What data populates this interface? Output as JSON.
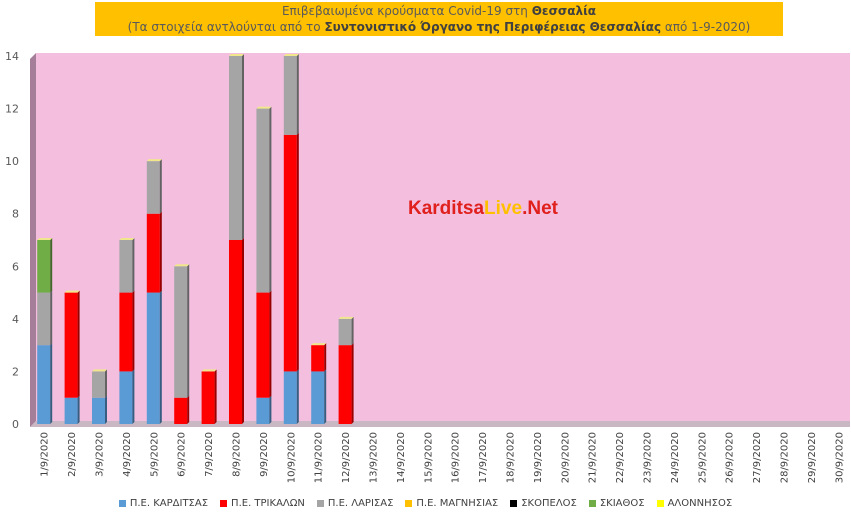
{
  "title": {
    "line1_prefix": "Επιβεβαιωμένα κρούσματα Covid-19 στη ",
    "line1_bold": "Θεσσαλία",
    "line2_prefix": "(Τα στοιχεία αντλούνται από το ",
    "line2_bold": "Συντονιστικό Όργανο της Περιφέρειας Θεσσαλίας",
    "line2_suffix": " από 1-9-2020)"
  },
  "watermark": {
    "part1": "Karditsa",
    "part2": "Live",
    "part3": ".Net"
  },
  "colors": {
    "background": "#f4bedf",
    "title_bg": "#ffc000",
    "watermark_red": "#e0201c",
    "watermark_yellow": "#ffc000"
  },
  "chart_data": {
    "type": "bar",
    "stacked": true,
    "categories": [
      "1/9/2020",
      "2/9/2020",
      "3/9/2020",
      "4/9/2020",
      "5/9/2020",
      "6/9/2020",
      "7/9/2020",
      "8/9/2020",
      "9/9/2020",
      "10/9/2020",
      "11/9/2020",
      "12/9/2020",
      "13/9/2020",
      "14/9/2020",
      "15/9/2020",
      "16/9/2020",
      "17/9/2020",
      "18/9/2020",
      "19/9/2020",
      "20/9/2020",
      "21/9/2020",
      "22/9/2020",
      "23/9/2020",
      "24/9/2020",
      "25/9/2020",
      "26/9/2020",
      "27/9/2020",
      "28/9/2020",
      "29/9/2020",
      "30/9/2020"
    ],
    "series": [
      {
        "name": "Π.Ε. ΚΑΡΔΙΤΣΑΣ",
        "color": "#5b9bd5",
        "values": [
          3,
          1,
          1,
          2,
          5,
          0,
          0,
          0,
          1,
          2,
          2,
          0,
          0,
          0,
          0,
          0,
          0,
          0,
          0,
          0,
          0,
          0,
          0,
          0,
          0,
          0,
          0,
          0,
          0,
          0
        ]
      },
      {
        "name": "Π.Ε. ΤΡΙΚΑΛΩΝ",
        "color": "#ff0000",
        "values": [
          0,
          4,
          0,
          3,
          3,
          1,
          2,
          7,
          4,
          9,
          1,
          3,
          0,
          0,
          0,
          0,
          0,
          0,
          0,
          0,
          0,
          0,
          0,
          0,
          0,
          0,
          0,
          0,
          0,
          0
        ]
      },
      {
        "name": "Π.Ε. ΛΑΡΙΣΑΣ",
        "color": "#a5a5a5",
        "values": [
          2,
          0,
          1,
          2,
          2,
          5,
          0,
          7,
          7,
          3,
          0,
          1,
          0,
          0,
          0,
          0,
          0,
          0,
          0,
          0,
          0,
          0,
          0,
          0,
          0,
          0,
          0,
          0,
          0,
          0
        ]
      },
      {
        "name": "Π.Ε. ΜΑΓΝΗΣΙΑΣ",
        "color": "#ffc000",
        "values": [
          0,
          0,
          0,
          0,
          0,
          0,
          0,
          0,
          0,
          0,
          0,
          0,
          0,
          0,
          0,
          0,
          0,
          0,
          0,
          0,
          0,
          0,
          0,
          0,
          0,
          0,
          0,
          0,
          0,
          0
        ]
      },
      {
        "name": "ΣΚΟΠΕΛΟΣ",
        "color": "#000000",
        "values": [
          0,
          0,
          0,
          0,
          0,
          0,
          0,
          0,
          0,
          0,
          0,
          0,
          0,
          0,
          0,
          0,
          0,
          0,
          0,
          0,
          0,
          0,
          0,
          0,
          0,
          0,
          0,
          0,
          0,
          0
        ]
      },
      {
        "name": "ΣΚΙΑΘΟΣ",
        "color": "#70ad47",
        "values": [
          2,
          0,
          0,
          0,
          0,
          0,
          0,
          0,
          0,
          0,
          0,
          0,
          0,
          0,
          0,
          0,
          0,
          0,
          0,
          0,
          0,
          0,
          0,
          0,
          0,
          0,
          0,
          0,
          0,
          0
        ]
      },
      {
        "name": "ΑΛΟΝΝΗΣΟΣ",
        "color": "#ffff00",
        "values": [
          0,
          0,
          0,
          0,
          0,
          0,
          0,
          0,
          0,
          0,
          0,
          0,
          0,
          0,
          0,
          0,
          0,
          0,
          0,
          0,
          0,
          0,
          0,
          0,
          0,
          0,
          0,
          0,
          0,
          0
        ]
      }
    ],
    "yticks": [
      "0",
      "2",
      "4",
      "6",
      "8",
      "10",
      "12",
      "14"
    ],
    "ylim": [
      0,
      14
    ],
    "grid": false,
    "legend_position": "bottom"
  }
}
